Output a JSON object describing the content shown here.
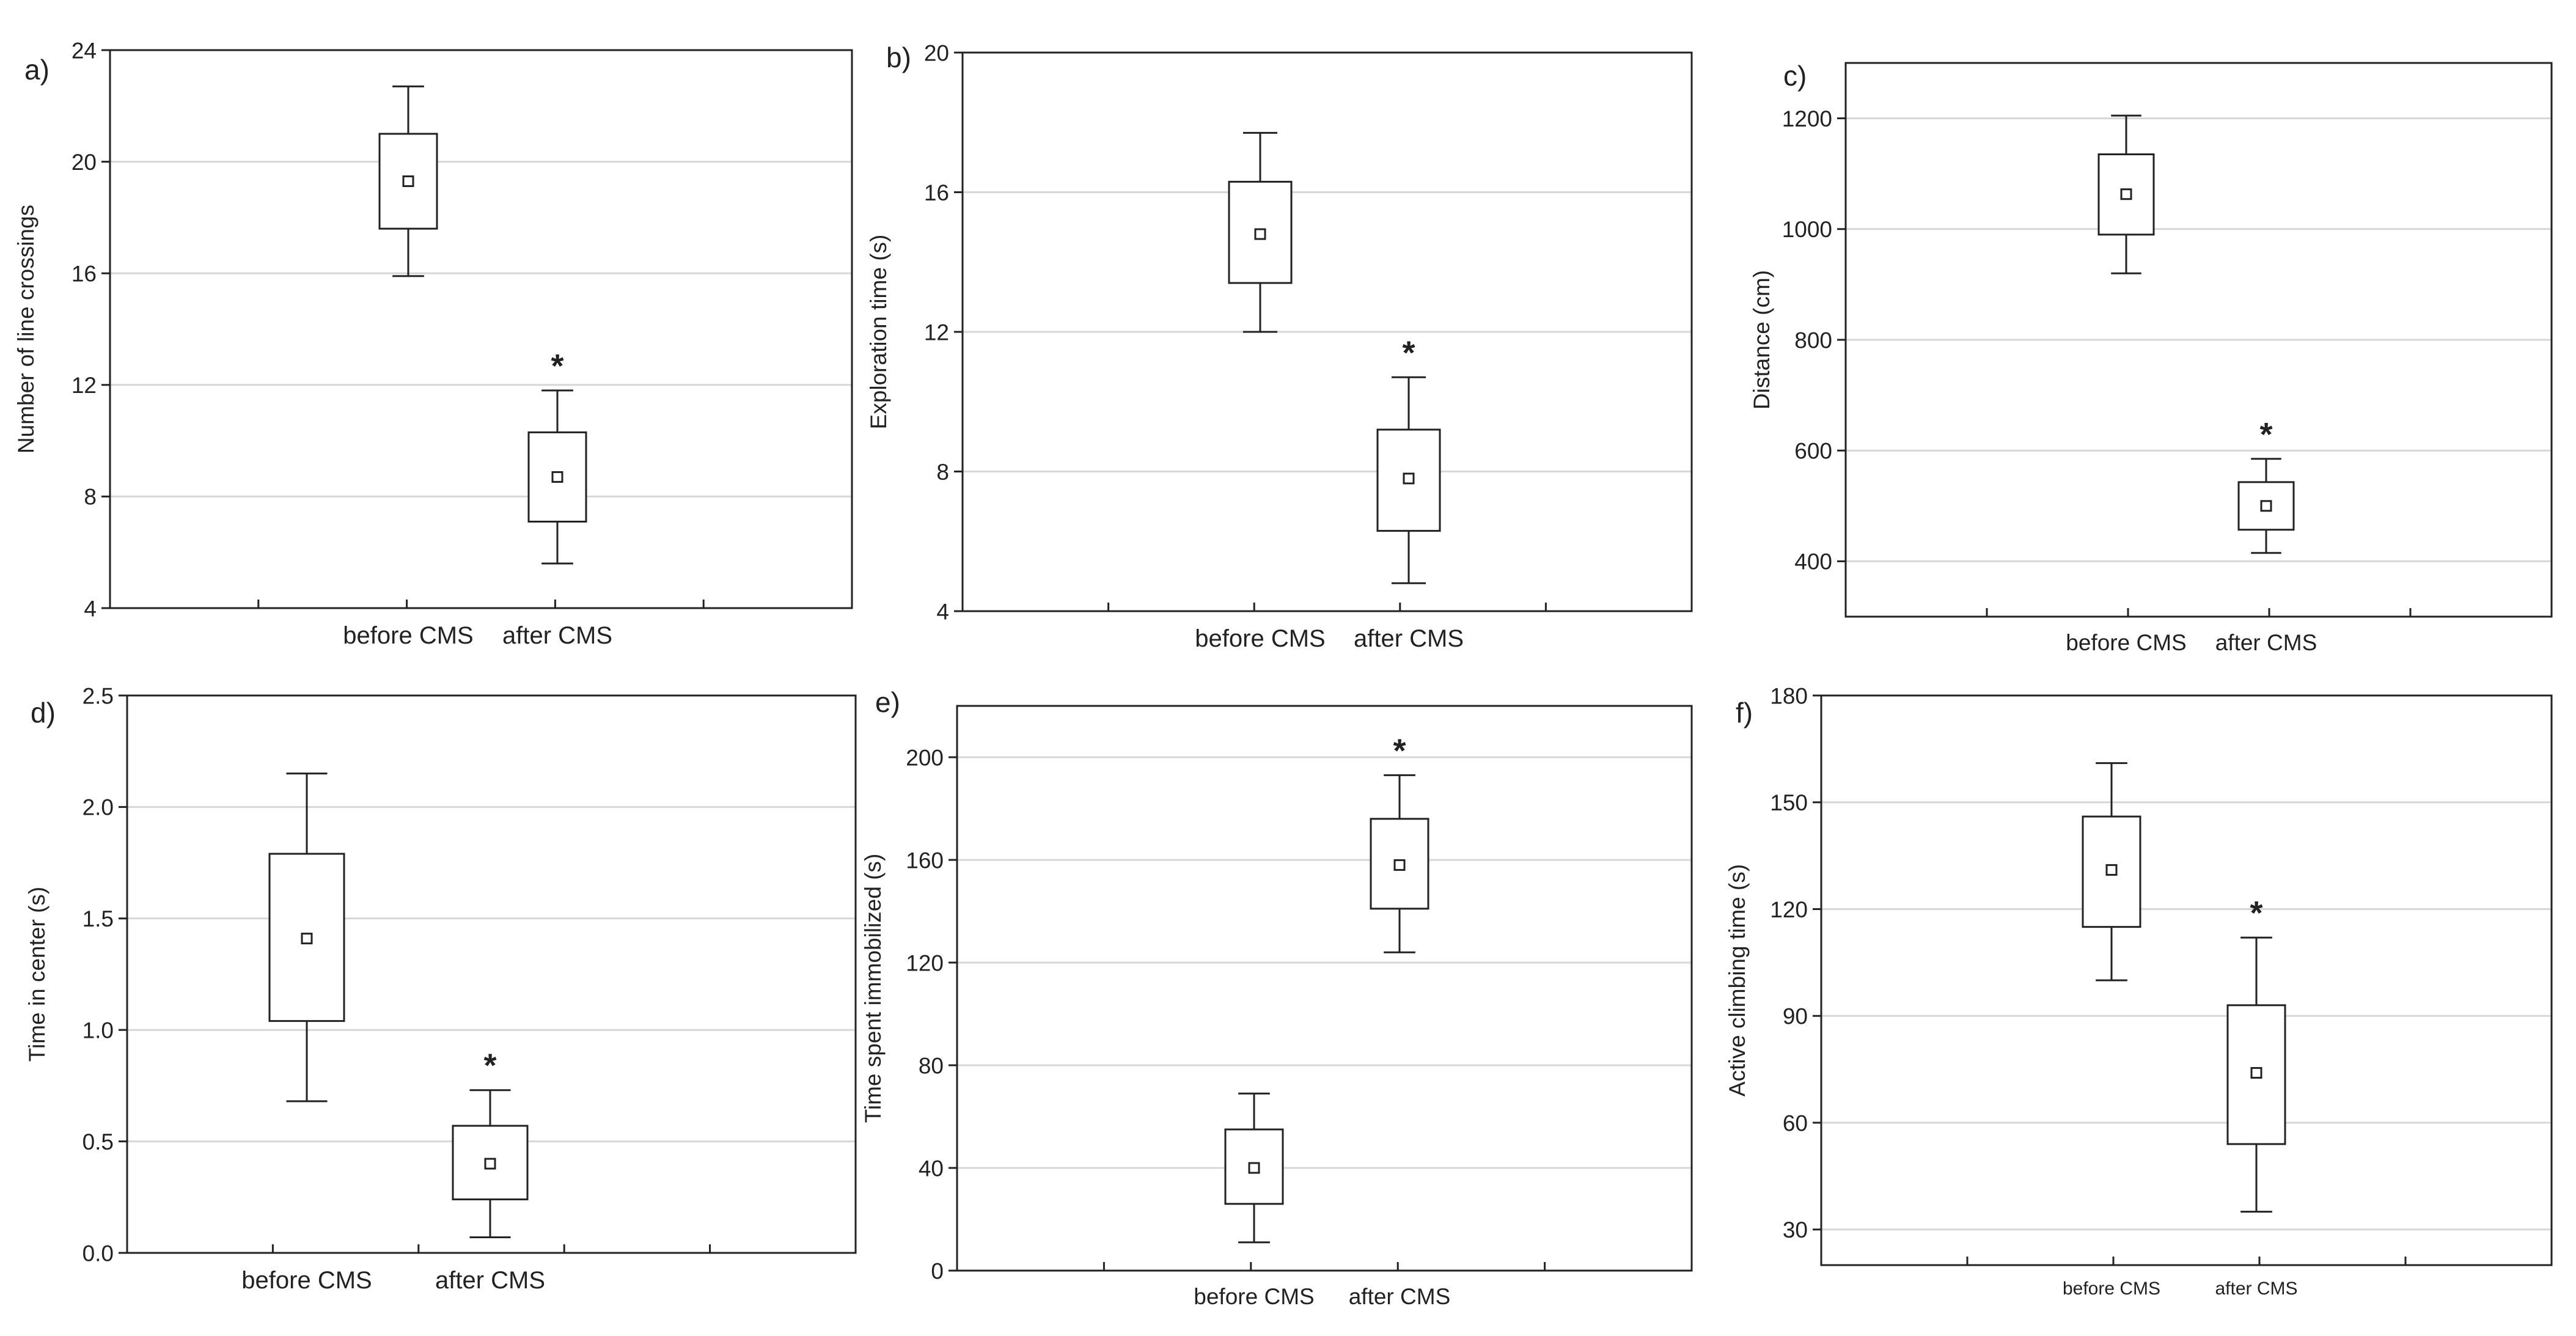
{
  "chart_data": [
    {
      "panel_label": "a)",
      "type": "boxplot",
      "ylabel": "Number of line crossings",
      "ylim": [
        4,
        24
      ],
      "yticks": [
        4,
        8,
        12,
        16,
        20,
        24
      ],
      "grid": true,
      "categories": [
        "before CMS",
        "after CMS"
      ],
      "boxes": [
        {
          "category": "before CMS",
          "mean": 19.3,
          "box_low": 17.6,
          "box_high": 21.0,
          "whisker_low": 15.9,
          "whisker_high": 22.7,
          "annotation": ""
        },
        {
          "category": "after CMS",
          "mean": 8.7,
          "box_low": 7.1,
          "box_high": 10.3,
          "whisker_low": 5.6,
          "whisker_high": 11.8,
          "annotation": "*"
        }
      ]
    },
    {
      "panel_label": "b)",
      "type": "boxplot",
      "ylabel": "Exploration time (s)",
      "ylim": [
        4,
        20
      ],
      "yticks": [
        4,
        8,
        12,
        16,
        20
      ],
      "grid": true,
      "categories": [
        "before CMS",
        "after CMS"
      ],
      "boxes": [
        {
          "category": "before CMS",
          "mean": 14.8,
          "box_low": 13.4,
          "box_high": 16.3,
          "whisker_low": 12.0,
          "whisker_high": 17.7,
          "annotation": ""
        },
        {
          "category": "after CMS",
          "mean": 7.8,
          "box_low": 6.3,
          "box_high": 9.2,
          "whisker_low": 4.8,
          "whisker_high": 10.7,
          "annotation": "*"
        }
      ]
    },
    {
      "panel_label": "c)",
      "type": "boxplot",
      "ylabel": "Distance (cm)",
      "ylim": [
        300,
        1300
      ],
      "yticks": [
        400,
        600,
        800,
        1000,
        1200
      ],
      "grid": true,
      "categories": [
        "before CMS",
        "after CMS"
      ],
      "boxes": [
        {
          "category": "before CMS",
          "mean": 1063,
          "box_low": 990,
          "box_high": 1135,
          "whisker_low": 920,
          "whisker_high": 1205,
          "annotation": ""
        },
        {
          "category": "after CMS",
          "mean": 500,
          "box_low": 457,
          "box_high": 543,
          "whisker_low": 415,
          "whisker_high": 585,
          "annotation": "*"
        }
      ]
    },
    {
      "panel_label": "d)",
      "type": "boxplot",
      "ylabel": "Time in center (s)",
      "ylim": [
        0,
        2.5
      ],
      "yticks": [
        0.0,
        0.5,
        1.0,
        1.5,
        2.0,
        2.5
      ],
      "ytick_labels": [
        "0.0",
        "0.5",
        "1.0",
        "1.5",
        "2.0",
        "2.5"
      ],
      "grid": true,
      "categories": [
        "before CMS",
        "after CMS"
      ],
      "boxes": [
        {
          "category": "before CMS",
          "mean": 1.41,
          "box_low": 1.04,
          "box_high": 1.79,
          "whisker_low": 0.68,
          "whisker_high": 2.15,
          "annotation": ""
        },
        {
          "category": "after CMS",
          "mean": 0.4,
          "box_low": 0.24,
          "box_high": 0.57,
          "whisker_low": 0.07,
          "whisker_high": 0.73,
          "annotation": "*"
        }
      ]
    },
    {
      "panel_label": "e)",
      "type": "boxplot",
      "ylabel": "Time spent immobilized (s)",
      "ylim": [
        0,
        220
      ],
      "yticks": [
        0,
        40,
        80,
        120,
        160,
        200
      ],
      "grid": true,
      "categories": [
        "before CMS",
        "after CMS"
      ],
      "boxes": [
        {
          "category": "before CMS",
          "mean": 40,
          "box_low": 26,
          "box_high": 55,
          "whisker_low": 11,
          "whisker_high": 69,
          "annotation": ""
        },
        {
          "category": "after CMS",
          "mean": 158,
          "box_low": 141,
          "box_high": 176,
          "whisker_low": 124,
          "whisker_high": 193,
          "annotation": "*"
        }
      ]
    },
    {
      "panel_label": "f)",
      "type": "boxplot",
      "ylabel": "Active climbing time (s)",
      "ylim": [
        20,
        180
      ],
      "yticks": [
        30,
        60,
        90,
        120,
        150,
        180
      ],
      "grid": true,
      "categories": [
        "before CMS",
        "after CMS"
      ],
      "boxes": [
        {
          "category": "before CMS",
          "mean": 131,
          "box_low": 115,
          "box_high": 146,
          "whisker_low": 100,
          "whisker_high": 161,
          "annotation": ""
        },
        {
          "category": "after CMS",
          "mean": 74,
          "box_low": 54,
          "box_high": 93,
          "whisker_low": 35,
          "whisker_high": 112,
          "annotation": "*"
        }
      ]
    }
  ]
}
